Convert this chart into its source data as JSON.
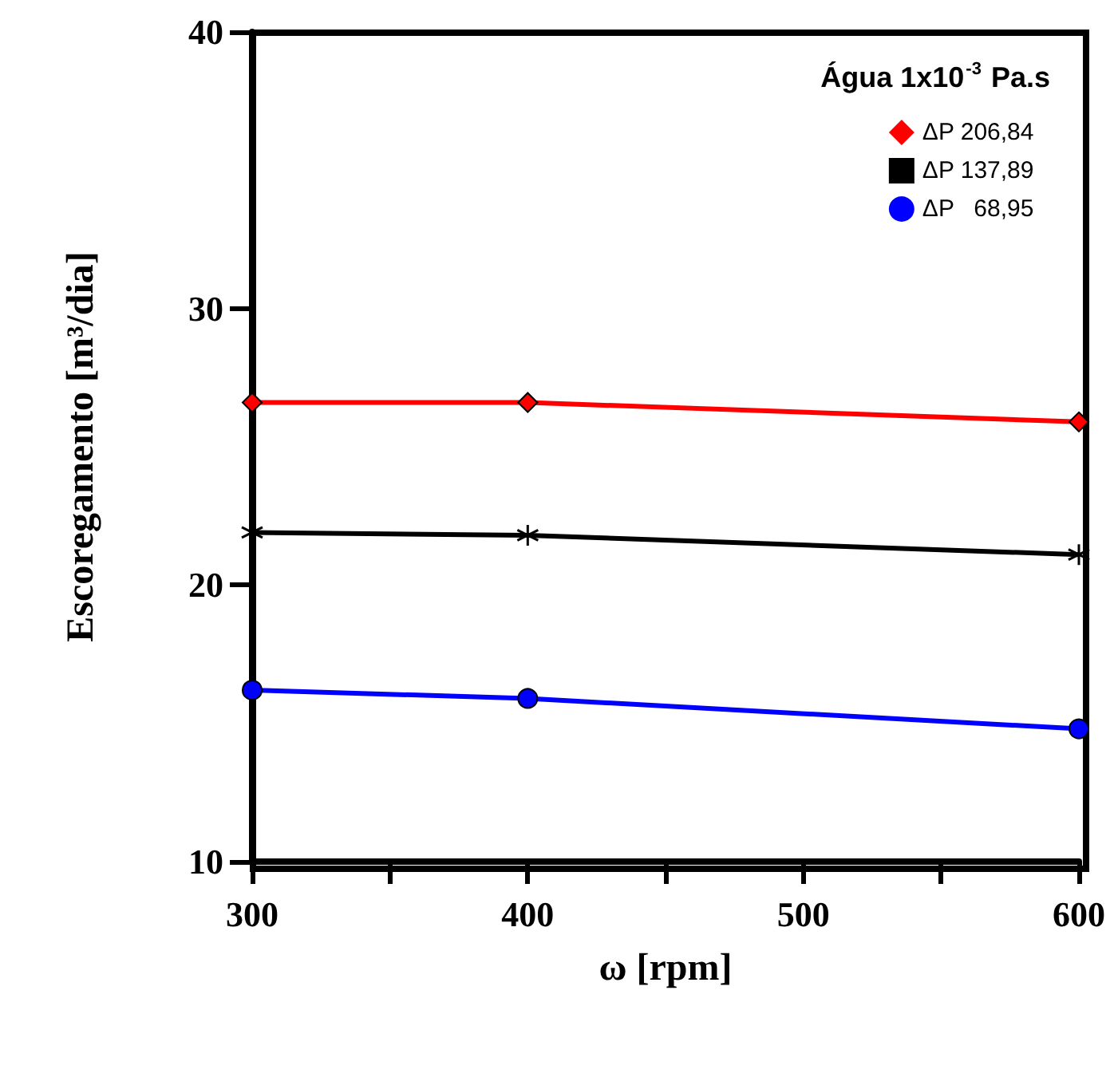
{
  "chart_data": {
    "type": "line",
    "xlabel": "ω [rpm]",
    "ylabel": "Escoregamento [m³/dia]",
    "legend_title": "Água 1x10$^{-3}$ Pa.s",
    "x": [
      300,
      400,
      600
    ],
    "series": [
      {
        "name": "ΔP 206,84",
        "color": "#ff0000",
        "marker": "diamond",
        "values": [
          26.6,
          26.6,
          25.9
        ]
      },
      {
        "name": "ΔP 137,89",
        "color": "#000000",
        "marker": "cross",
        "values": [
          21.9,
          21.8,
          21.1
        ]
      },
      {
        "name": "ΔP   68,95",
        "color": "#0000ff",
        "marker": "circle",
        "values": [
          16.2,
          15.9,
          14.8
        ]
      }
    ],
    "xlim": [
      300,
      600
    ],
    "xticks": [
      300,
      {
        "value": 350,
        "label": null
      },
      400,
      {
        "value": 450,
        "label": null
      },
      500,
      {
        "value": 550,
        "label": null
      },
      600
    ],
    "ylim": [
      10,
      40
    ],
    "yticks": [
      10,
      20,
      30,
      40
    ],
    "grid": false,
    "legend": "top right",
    "line_style": "solid"
  }
}
